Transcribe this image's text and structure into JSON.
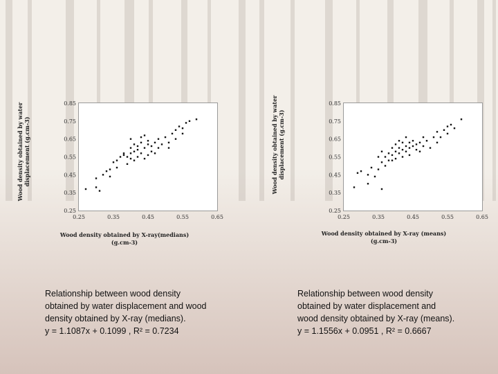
{
  "chart_data": [
    {
      "type": "scatter",
      "title": "",
      "xlabel": "Wood density obtained by X-ray(medians) (g.cm-3)",
      "ylabel": "Wood density obtained by water displacement (g.cm-3)",
      "xlim": [
        0.25,
        0.65
      ],
      "ylim": [
        0.25,
        0.85
      ],
      "xticks": [
        "0.25",
        "0.35",
        "0.45",
        "0.55",
        "0.65"
      ],
      "yticks": [
        "0.25",
        "0.35",
        "0.45",
        "0.55",
        "0.65",
        "0.75",
        "0.85"
      ],
      "grid": false,
      "legend": "none",
      "points": [
        [
          0.27,
          0.37
        ],
        [
          0.3,
          0.38
        ],
        [
          0.31,
          0.36
        ],
        [
          0.3,
          0.43
        ],
        [
          0.32,
          0.45
        ],
        [
          0.33,
          0.47
        ],
        [
          0.34,
          0.44
        ],
        [
          0.34,
          0.48
        ],
        [
          0.35,
          0.52
        ],
        [
          0.36,
          0.49
        ],
        [
          0.36,
          0.53
        ],
        [
          0.37,
          0.55
        ],
        [
          0.38,
          0.56
        ],
        [
          0.38,
          0.57
        ],
        [
          0.39,
          0.51
        ],
        [
          0.39,
          0.55
        ],
        [
          0.4,
          0.54
        ],
        [
          0.4,
          0.57
        ],
        [
          0.4,
          0.6
        ],
        [
          0.4,
          0.65
        ],
        [
          0.41,
          0.53
        ],
        [
          0.41,
          0.58
        ],
        [
          0.41,
          0.62
        ],
        [
          0.42,
          0.55
        ],
        [
          0.42,
          0.59
        ],
        [
          0.42,
          0.61
        ],
        [
          0.43,
          0.57
        ],
        [
          0.43,
          0.63
        ],
        [
          0.43,
          0.66
        ],
        [
          0.44,
          0.54
        ],
        [
          0.44,
          0.6
        ],
        [
          0.44,
          0.67
        ],
        [
          0.45,
          0.56
        ],
        [
          0.45,
          0.62
        ],
        [
          0.45,
          0.64
        ],
        [
          0.46,
          0.58
        ],
        [
          0.46,
          0.61
        ],
        [
          0.47,
          0.63
        ],
        [
          0.47,
          0.57
        ],
        [
          0.48,
          0.6
        ],
        [
          0.48,
          0.65
        ],
        [
          0.49,
          0.62
        ],
        [
          0.5,
          0.66
        ],
        [
          0.51,
          0.6
        ],
        [
          0.51,
          0.63
        ],
        [
          0.52,
          0.68
        ],
        [
          0.53,
          0.65
        ],
        [
          0.53,
          0.7
        ],
        [
          0.54,
          0.72
        ],
        [
          0.55,
          0.71
        ],
        [
          0.55,
          0.68
        ],
        [
          0.56,
          0.74
        ],
        [
          0.57,
          0.75
        ],
        [
          0.59,
          0.76
        ]
      ]
    },
    {
      "type": "scatter",
      "title": "",
      "xlabel": "Wood density obtained by X-ray (means) (g.cm-3)",
      "ylabel": "Wood density obtained by water displacement (g.cm-3)",
      "xlim": [
        0.25,
        0.65
      ],
      "ylim": [
        0.25,
        0.85
      ],
      "xticks": [
        "0.25",
        "0.35",
        "0.45",
        "0.55",
        "0.65"
      ],
      "yticks": [
        "0.25",
        "0.35",
        "0.45",
        "0.55",
        "0.65",
        "0.75",
        "0.85"
      ],
      "grid": false,
      "legend": "none",
      "points": [
        [
          0.28,
          0.38
        ],
        [
          0.29,
          0.46
        ],
        [
          0.3,
          0.47
        ],
        [
          0.32,
          0.4
        ],
        [
          0.32,
          0.45
        ],
        [
          0.33,
          0.49
        ],
        [
          0.34,
          0.44
        ],
        [
          0.35,
          0.48
        ],
        [
          0.35,
          0.55
        ],
        [
          0.36,
          0.52
        ],
        [
          0.36,
          0.58
        ],
        [
          0.37,
          0.5
        ],
        [
          0.37,
          0.55
        ],
        [
          0.38,
          0.53
        ],
        [
          0.38,
          0.57
        ],
        [
          0.39,
          0.6
        ],
        [
          0.39,
          0.56
        ],
        [
          0.4,
          0.54
        ],
        [
          0.4,
          0.58
        ],
        [
          0.4,
          0.62
        ],
        [
          0.41,
          0.57
        ],
        [
          0.41,
          0.6
        ],
        [
          0.41,
          0.64
        ],
        [
          0.42,
          0.55
        ],
        [
          0.42,
          0.59
        ],
        [
          0.42,
          0.63
        ],
        [
          0.43,
          0.58
        ],
        [
          0.43,
          0.61
        ],
        [
          0.43,
          0.66
        ],
        [
          0.44,
          0.6
        ],
        [
          0.44,
          0.63
        ],
        [
          0.44,
          0.56
        ],
        [
          0.45,
          0.61
        ],
        [
          0.45,
          0.64
        ],
        [
          0.46,
          0.59
        ],
        [
          0.46,
          0.62
        ],
        [
          0.47,
          0.63
        ],
        [
          0.47,
          0.58
        ],
        [
          0.48,
          0.61
        ],
        [
          0.48,
          0.66
        ],
        [
          0.49,
          0.64
        ],
        [
          0.5,
          0.6
        ],
        [
          0.51,
          0.66
        ],
        [
          0.52,
          0.63
        ],
        [
          0.52,
          0.69
        ],
        [
          0.53,
          0.66
        ],
        [
          0.54,
          0.7
        ],
        [
          0.55,
          0.68
        ],
        [
          0.55,
          0.72
        ],
        [
          0.56,
          0.73
        ],
        [
          0.57,
          0.71
        ],
        [
          0.59,
          0.76
        ],
        [
          0.36,
          0.37
        ],
        [
          0.39,
          0.53
        ]
      ]
    }
  ],
  "captions": [
    {
      "lines": [
        "Relationship between wood density",
        "obtained by water displacement and wood",
        "density obtained by X-ray (medians).",
        "y = 1.1087x + 0.1099 , R² = 0.7234"
      ]
    },
    {
      "lines": [
        "Relationship between wood density",
        "obtained by water displacement and",
        "wood density obtained by X-ray (means).",
        "y = 1.1556x + 0.0951 , R² = 0.6667"
      ]
    }
  ],
  "colors": {
    "sky": "#f3efe9",
    "ground": "#d6c3bb",
    "trunks": "#b7aea6",
    "marker": "#111111"
  }
}
